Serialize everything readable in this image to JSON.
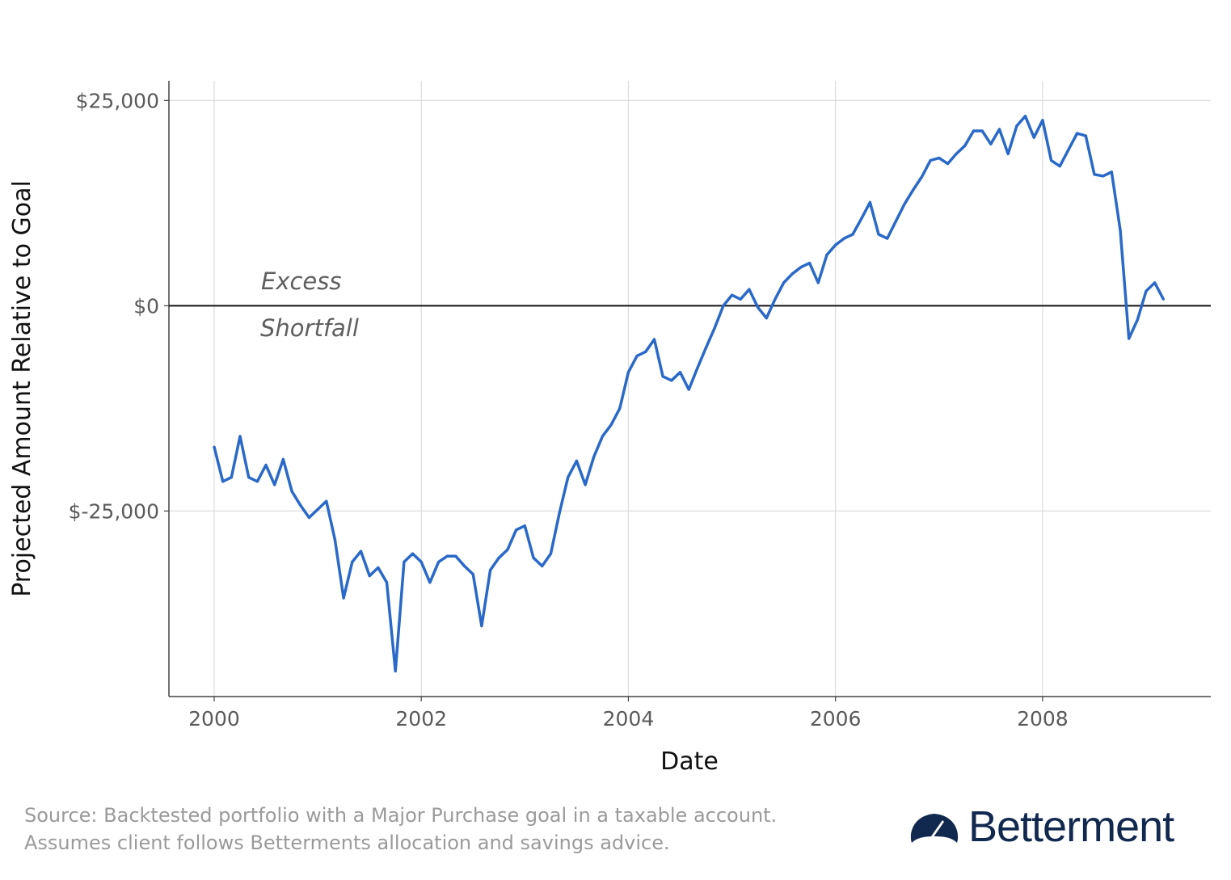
{
  "chart_data": {
    "type": "line",
    "title": "",
    "xlabel": "Date",
    "ylabel": "Projected Amount Relative to Goal",
    "xlim": [
      "1999-07-24",
      "2009-08-16"
    ],
    "ylim": [
      -47600,
      27400
    ],
    "x_ticks": [
      "2000",
      "2002",
      "2004",
      "2006",
      "2008"
    ],
    "y_ticks": [
      {
        "value": 25000,
        "label": "$25,000"
      },
      {
        "value": 0,
        "label": "$0"
      },
      {
        "value": -25000,
        "label": "$-25,000"
      }
    ],
    "grid": true,
    "reference_line": 0,
    "line_color": "#2a69c8",
    "annotations": {
      "above": "Excess",
      "below": "Shortfall"
    },
    "series": [
      {
        "dates": [
          "2000-01",
          "2000-02",
          "2000-03",
          "2000-04",
          "2000-05",
          "2000-06",
          "2000-07",
          "2000-08",
          "2000-09",
          "2000-10",
          "2000-11",
          "2000-12",
          "2001-01",
          "2001-02",
          "2001-03",
          "2001-04",
          "2001-05",
          "2001-06",
          "2001-07",
          "2001-08",
          "2001-09",
          "2001-10",
          "2001-11",
          "2001-12",
          "2002-01",
          "2002-02",
          "2002-03",
          "2002-04",
          "2002-05",
          "2002-06",
          "2002-07",
          "2002-08",
          "2002-09",
          "2002-10",
          "2002-11",
          "2002-12",
          "2003-01",
          "2003-02",
          "2003-03",
          "2003-04",
          "2003-05",
          "2003-06",
          "2003-07",
          "2003-08",
          "2003-09",
          "2003-10",
          "2003-11",
          "2003-12",
          "2004-01",
          "2004-02",
          "2004-03",
          "2004-04",
          "2004-05",
          "2004-06",
          "2004-07",
          "2004-08",
          "2004-09",
          "2004-10",
          "2004-11",
          "2004-12",
          "2005-01",
          "2005-02",
          "2005-03",
          "2005-04",
          "2005-05",
          "2005-06",
          "2005-07",
          "2005-08",
          "2005-09",
          "2005-10",
          "2005-11",
          "2005-12",
          "2006-01",
          "2006-02",
          "2006-03",
          "2006-04",
          "2006-05",
          "2006-06",
          "2006-07",
          "2006-08",
          "2006-09",
          "2006-10",
          "2006-11",
          "2006-12",
          "2007-01",
          "2007-02",
          "2007-03",
          "2007-04",
          "2007-05",
          "2007-06",
          "2007-07",
          "2007-08",
          "2007-09",
          "2007-10",
          "2007-11",
          "2007-12",
          "2008-01",
          "2008-02",
          "2008-03",
          "2008-04",
          "2008-05",
          "2008-06",
          "2008-07",
          "2008-08",
          "2008-09",
          "2008-10",
          "2008-11",
          "2008-12",
          "2009-01",
          "2009-02",
          "2009-03"
        ],
        "values": [
          -17200,
          -21400,
          -20900,
          -15900,
          -20900,
          -21400,
          -19400,
          -21800,
          -18700,
          -22600,
          -24300,
          -25800,
          -24800,
          -23800,
          -28500,
          -35600,
          -31200,
          -29900,
          -32900,
          -31900,
          -33700,
          -44500,
          -31200,
          -30200,
          -31200,
          -33700,
          -31200,
          -30500,
          -30500,
          -31700,
          -32700,
          -39000,
          -32200,
          -30700,
          -29700,
          -27300,
          -26800,
          -30700,
          -31700,
          -30200,
          -25300,
          -20900,
          -18900,
          -21800,
          -18400,
          -15900,
          -14500,
          -12500,
          -8100,
          -6100,
          -5600,
          -4100,
          -8600,
          -9100,
          -8100,
          -10200,
          -7600,
          -5100,
          -2700,
          0,
          1300,
          800,
          2000,
          -200,
          -1500,
          800,
          2800,
          3900,
          4700,
          5200,
          2800,
          6200,
          7400,
          8200,
          8700,
          10600,
          12600,
          8700,
          8200,
          10300,
          12400,
          14100,
          15700,
          17700,
          18000,
          17300,
          18500,
          19500,
          21300,
          21300,
          19700,
          21500,
          18500,
          21900,
          23100,
          20500,
          22600,
          17700,
          17000,
          19000,
          21000,
          20700,
          16000,
          15800,
          16300,
          9200,
          -4000,
          -1700,
          1800,
          2800,
          800
        ]
      }
    ]
  },
  "footer": {
    "source_line1": "Source: Backtested portfolio with a Major Purchase goal in a taxable account.",
    "source_line2": "Assumes client follows Betterments allocation and savings advice.",
    "logo_text": "Betterment",
    "logo_color": "#12294f"
  }
}
